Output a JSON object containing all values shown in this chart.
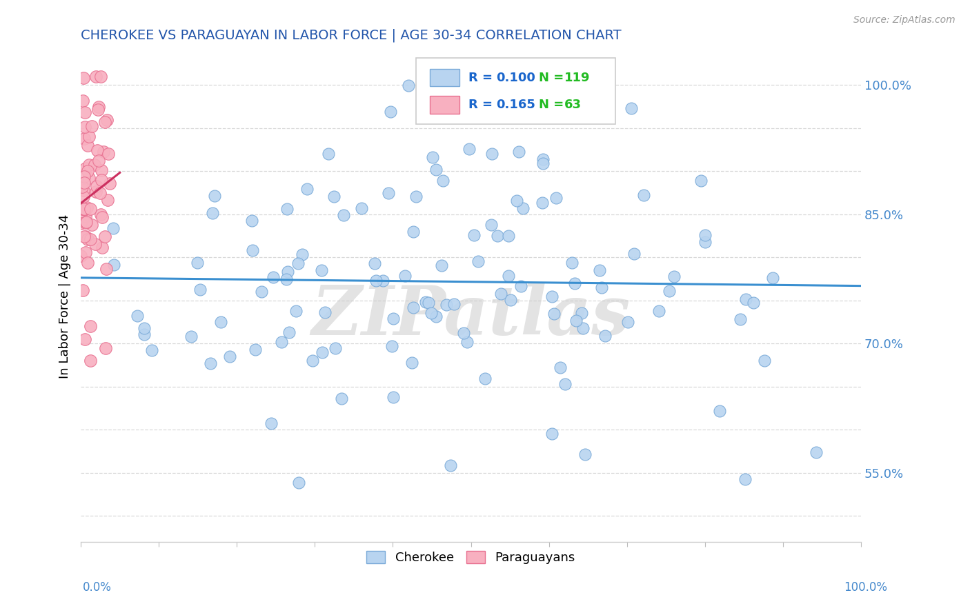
{
  "title": "CHEROKEE VS PARAGUAYAN IN LABOR FORCE | AGE 30-34 CORRELATION CHART",
  "source_text": "Source: ZipAtlas.com",
  "ylabel": "In Labor Force | Age 30-34",
  "y_ticks": [
    0.5,
    0.55,
    0.6,
    0.65,
    0.7,
    0.75,
    0.8,
    0.85,
    0.9,
    0.95,
    1.0
  ],
  "y_tick_labels": [
    "",
    "55.0%",
    "",
    "",
    "70.0%",
    "",
    "",
    "85.0%",
    "",
    "",
    "100.0%"
  ],
  "xlim": [
    0.0,
    1.0
  ],
  "ylim": [
    0.47,
    1.04
  ],
  "cherokee_color": "#b8d4f0",
  "cherokee_edge": "#7aaad8",
  "paraguayan_color": "#f8b0c0",
  "paraguayan_edge": "#e87090",
  "cherokee_line_color": "#3a8fd0",
  "paraguayan_line_color": "#cc3060",
  "legend_r_cherokee": "R = 0.100",
  "legend_n_cherokee": "N = 119",
  "legend_r_paraguayan": "R = 0.165",
  "legend_n_paraguayan": "N = 63",
  "watermark": "ZIPatlas",
  "n_cherokee": 119,
  "n_paraguayan": 63,
  "cherokee_R": 0.1,
  "paraguayan_R": 0.165,
  "background_color": "#ffffff",
  "grid_color": "#d8d8d8",
  "title_color": "#2255aa",
  "axis_label_color": "#4488cc",
  "legend_r_color": "#1a66cc",
  "legend_n_color": "#22bb22"
}
